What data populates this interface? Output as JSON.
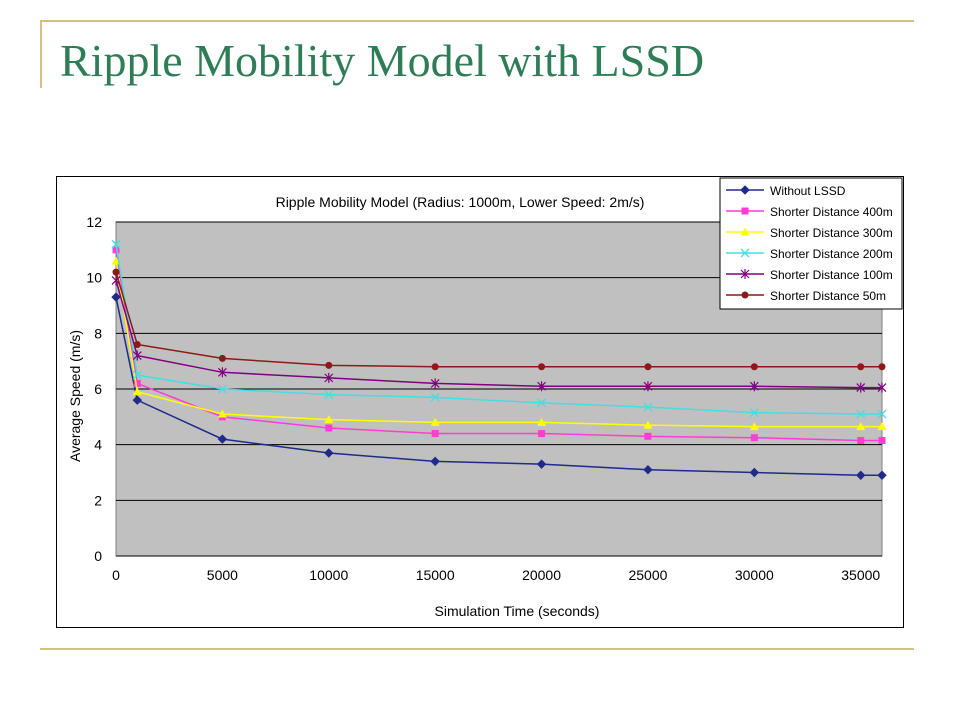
{
  "slide": {
    "title": "Ripple Mobility Model with LSSD"
  },
  "colors": {
    "title": "#2e7d57",
    "rules": "#d4c27a",
    "plot_bg": "#c0c0c0"
  },
  "chart_data": {
    "type": "line",
    "title": "Ripple Mobility Model (Radius: 1000m, Lower Speed: 2m/s)",
    "xlabel": "Simulation Time (seconds)",
    "ylabel": "Average Speed (m/s)",
    "xlim": [
      0,
      36000
    ],
    "ylim": [
      0,
      12
    ],
    "xticks": [
      0,
      5000,
      10000,
      15000,
      20000,
      25000,
      30000,
      35000
    ],
    "xtick_labels": [
      "0",
      "5000",
      "10000",
      "15000",
      "20000",
      "25000",
      "30000",
      "35000"
    ],
    "yticks": [
      0,
      2,
      4,
      6,
      8,
      10,
      12
    ],
    "ytick_labels": [
      "0",
      "2",
      "4",
      "6",
      "8",
      "10",
      "12"
    ],
    "grid": true,
    "legend_position": "top-right",
    "x": [
      0,
      1000,
      5000,
      10000,
      15000,
      20000,
      25000,
      30000,
      35000,
      36000
    ],
    "series": [
      {
        "name": "Without LSSD",
        "color": "#1f2a8a",
        "marker": "diamond",
        "values": [
          9.3,
          5.6,
          4.2,
          3.7,
          3.4,
          3.3,
          3.1,
          3.0,
          2.9,
          2.9
        ]
      },
      {
        "name": "Shorter Distance 400m",
        "color": "#ff3cd6",
        "marker": "square",
        "values": [
          11.0,
          6.2,
          5.0,
          4.6,
          4.4,
          4.4,
          4.3,
          4.25,
          4.15,
          4.15
        ]
      },
      {
        "name": "Shorter Distance 300m",
        "color": "#ffff00",
        "marker": "triangle",
        "values": [
          10.6,
          5.9,
          5.1,
          4.9,
          4.8,
          4.8,
          4.7,
          4.65,
          4.65,
          4.65
        ]
      },
      {
        "name": "Shorter Distance 200m",
        "color": "#40e0e0",
        "marker": "x",
        "values": [
          11.2,
          6.5,
          6.0,
          5.8,
          5.7,
          5.5,
          5.35,
          5.15,
          5.1,
          5.1
        ]
      },
      {
        "name": "Shorter Distance 100m",
        "color": "#800080",
        "marker": "star",
        "values": [
          9.9,
          7.2,
          6.6,
          6.4,
          6.2,
          6.1,
          6.1,
          6.1,
          6.05,
          6.05
        ]
      },
      {
        "name": "Shorter Distance 50m",
        "color": "#8b1a1a",
        "marker": "circle",
        "values": [
          10.2,
          7.6,
          7.1,
          6.85,
          6.8,
          6.8,
          6.8,
          6.8,
          6.8,
          6.8
        ]
      }
    ]
  }
}
